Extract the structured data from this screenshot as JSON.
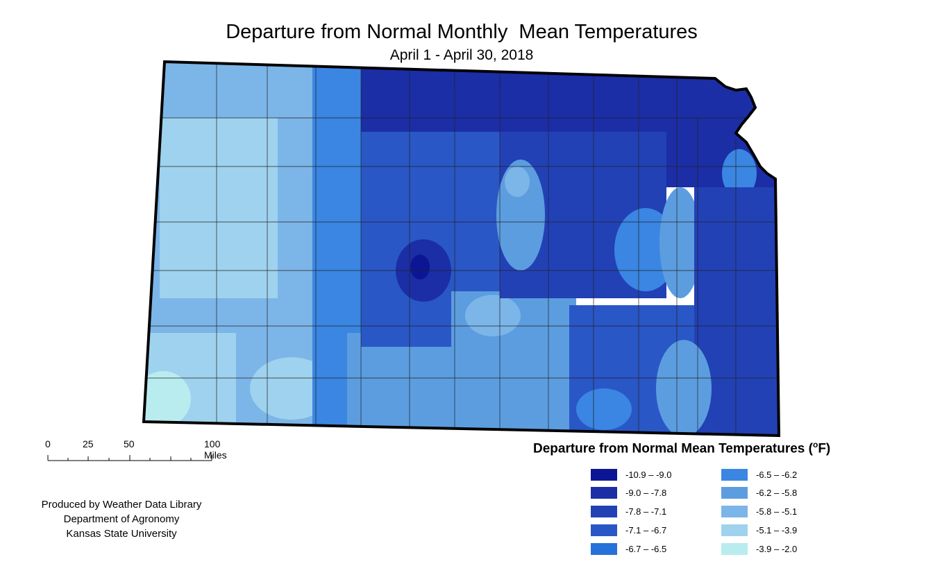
{
  "title": "Departure from Normal Monthly  Mean Temperatures",
  "subtitle": "April 1 - April 30, 2018",
  "scale_bar": {
    "labels": [
      "0",
      "25",
      "50",
      "100 Miles"
    ]
  },
  "credits": [
    "Produced by Weather Data Library",
    "Department of Agronomy",
    "Kansas State University"
  ],
  "legend": {
    "title": "Departure from Normal Mean Temperatures (",
    "unit_sup": "o",
    "unit_after": "F)",
    "items": [
      {
        "label": "-10.9 – -9.0",
        "color": "#0c1694"
      },
      {
        "label": "-9.0 – -7.8",
        "color": "#1b2ea6"
      },
      {
        "label": "-7.8 – -7.1",
        "color": "#2241b5"
      },
      {
        "label": "-7.1 – -6.7",
        "color": "#2a57c6"
      },
      {
        "label": "-6.7 – -6.5",
        "color": "#2672d9"
      },
      {
        "label": "-6.5 – -6.2",
        "color": "#3a86e2"
      },
      {
        "label": "-6.2 – -5.8",
        "color": "#5c9de0"
      },
      {
        "label": "-5.8 – -5.1",
        "color": "#7cb5e8"
      },
      {
        "label": "-5.1 – -3.9",
        "color": "#9fd2ee"
      },
      {
        "label": "-3.9 – -2.0",
        "color": "#b9ecee"
      }
    ]
  }
}
